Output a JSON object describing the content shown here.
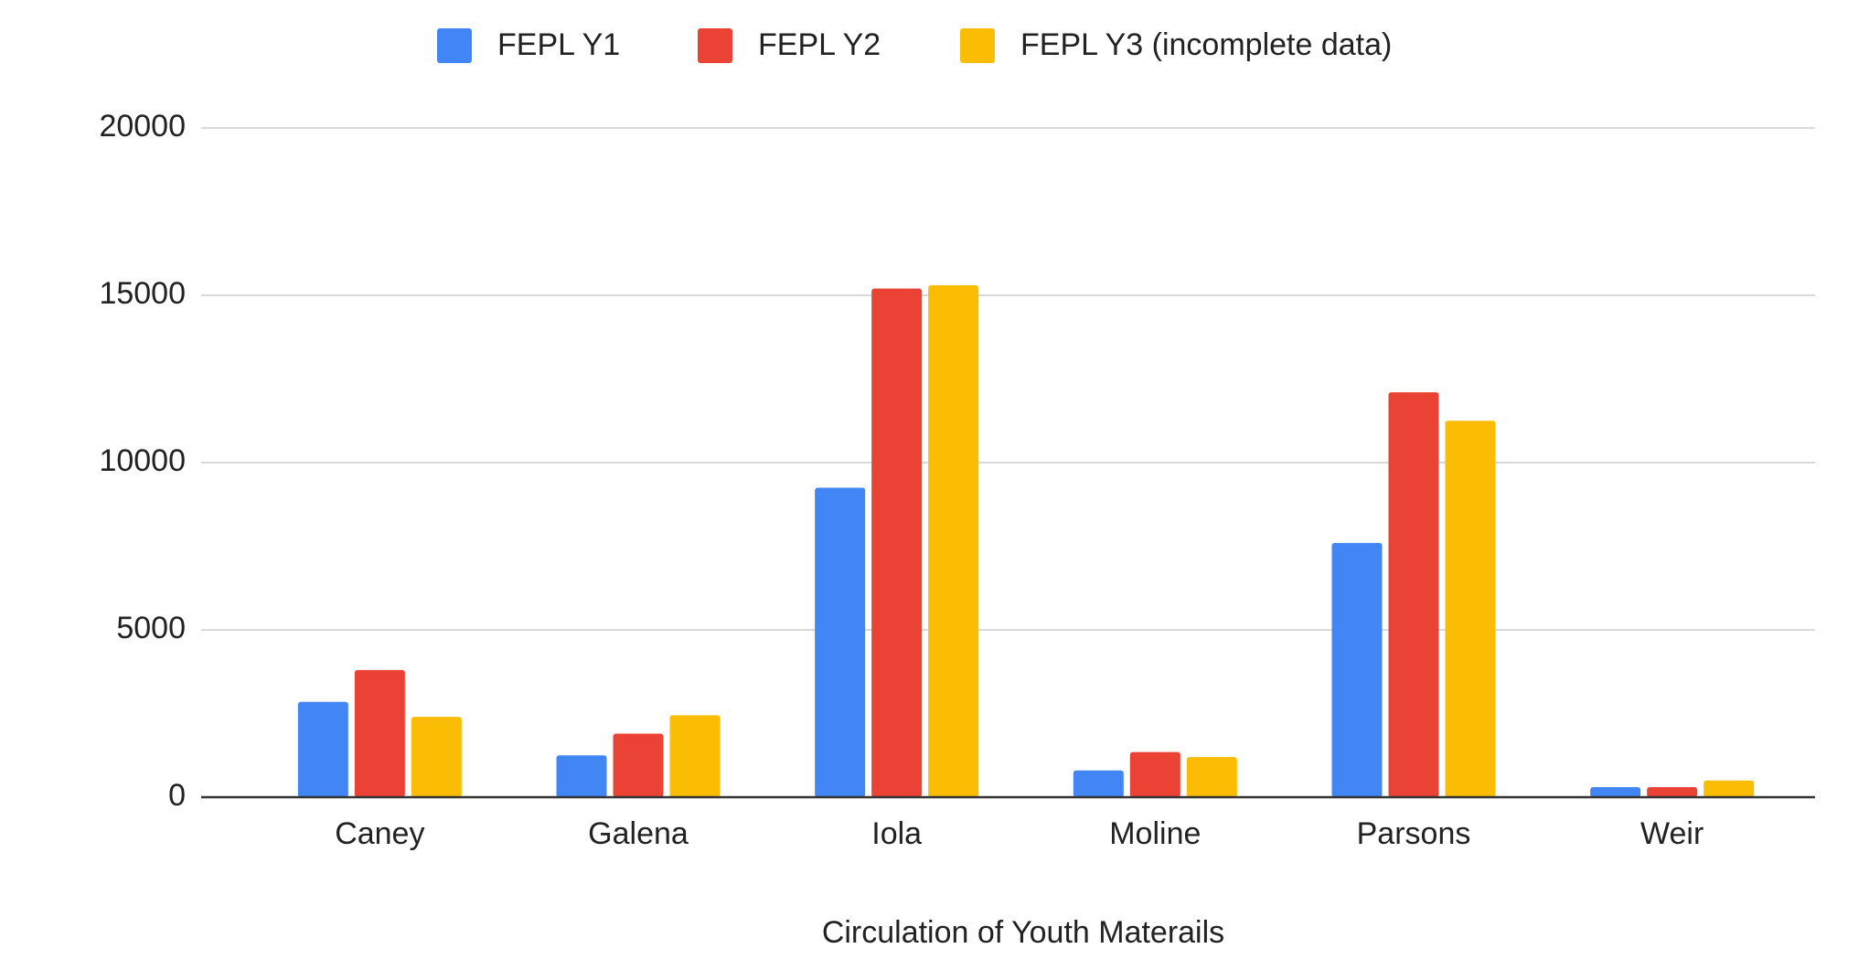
{
  "chart_data": {
    "type": "bar",
    "x_label": "Circulation of Youth Materails",
    "categories": [
      "Caney",
      "Galena",
      "Iola",
      "Moline",
      "Parsons",
      "Weir"
    ],
    "series": [
      {
        "name": "FEPL Y1",
        "color": "#4285f4",
        "values": [
          2850,
          1250,
          9250,
          800,
          7600,
          300
        ]
      },
      {
        "name": "FEPL Y2",
        "color": "#ea4335",
        "values": [
          3800,
          1900,
          15200,
          1350,
          12100,
          300
        ]
      },
      {
        "name": "FEPL Y3 (incomplete data)",
        "color": "#fbbc04",
        "values": [
          2400,
          2450,
          15300,
          1200,
          11250,
          500
        ]
      }
    ],
    "ylim": [
      0,
      20000
    ],
    "yticks": [
      0,
      5000,
      10000,
      15000,
      20000
    ],
    "grid": true,
    "legend": "top"
  }
}
